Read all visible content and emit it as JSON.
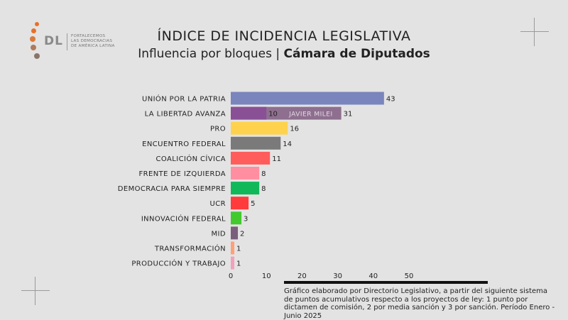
{
  "logo": {
    "initials": "DL",
    "tagline": [
      "FORTALECEMOS",
      "LAS DEMOCRACIAS",
      "DE AMÉRICA LATINA"
    ]
  },
  "header": {
    "title": "ÍNDICE DE INCIDENCIA LEGISLATIVA",
    "subtitle_regular": "Influencia por bloques | ",
    "subtitle_bold": "Cámara de Diputados"
  },
  "chart_data": {
    "type": "bar",
    "orientation": "horizontal",
    "categories": [
      "UNIÓN POR LA PATRIA",
      "LA LIBERTAD AVANZA",
      "PRO",
      "ENCUENTRO FEDERAL",
      "COALICIÓN CÍVICA",
      "FRENTE DE IZQUIERDA",
      "DEMOCRACIA PARA SIEMPRE",
      "UCR",
      "INNOVACIÓN FEDERAL",
      "MID",
      "TRANSFORMACIÓN",
      "PRODUCCIÓN Y TRABAJO"
    ],
    "values": [
      43,
      31,
      16,
      14,
      11,
      8,
      8,
      5,
      3,
      2,
      1,
      1
    ],
    "colors": [
      "#7a85bd",
      "#8a5096",
      "#ffd24d",
      "#7a7a7a",
      "#ff5c5c",
      "#ff8fa0",
      "#10b85a",
      "#ff3b3b",
      "#42c92e",
      "#7a5f7a",
      "#ffa07a",
      "#f2a0bd"
    ],
    "segment": {
      "category": "LA LIBERTAD AVANZA",
      "value": 10,
      "value_label": "10",
      "remainder_label": "JAVIER MILEI",
      "remainder_color": "#8e6f8f"
    },
    "xticks": [
      0,
      10,
      20,
      30,
      40,
      50
    ],
    "xlim": [
      0,
      50
    ]
  },
  "note": "Gráfico elaborado por Directorio Legislativo, a partir del siguiente sistema de puntos acumulativos respecto a los proyectos de ley: 1 punto por dictamen de comisión, 2 por media sanción y 3 por sanción. Período Enero - Junio 2025"
}
